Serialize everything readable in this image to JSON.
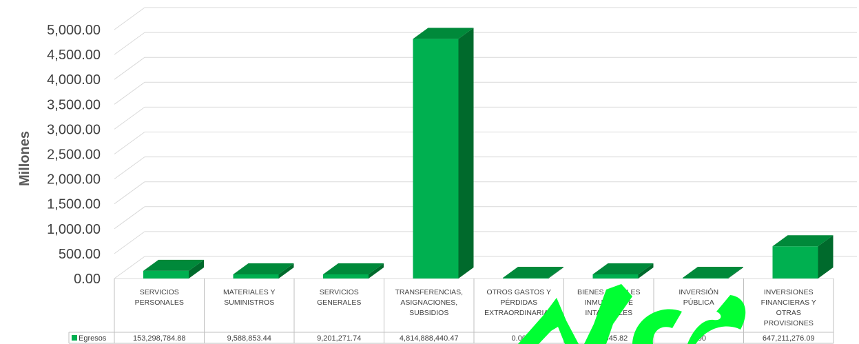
{
  "chart_data": {
    "type": "bar",
    "ylabel": "Millones",
    "ylim": [
      0,
      5000
    ],
    "yticks": [
      "0.00",
      "500.00",
      "1,000.00",
      "1,500.00",
      "2,000.00",
      "2,500.00",
      "3,000.00",
      "3,500.00",
      "4,000.00",
      "4,500.00",
      "5,000.00"
    ],
    "grid": true,
    "three_d": true,
    "categories": [
      [
        "SERVICIOS",
        "PERSONALES"
      ],
      [
        "MATERIALES Y",
        "SUMINISTROS"
      ],
      [
        "SERVICIOS",
        "GENERALES"
      ],
      [
        "TRANSFERENCIAS,",
        "ASIGNACIONES,",
        "SUBSIDIOS"
      ],
      [
        "OTROS GASTOS Y",
        "PÉRDIDAS",
        "EXTRAORDINARIAS"
      ],
      [
        "BIENES MUEBLES",
        "INMUEBLES E",
        "INTANGIBLES"
      ],
      [
        "INVERSIÓN",
        "PÚBLICA"
      ],
      [
        "INVERSIONES",
        "FINANCIERAS Y",
        "OTRAS",
        "PROVISIONES"
      ]
    ],
    "series": [
      {
        "name": "Egresos",
        "values_millions": [
          153.29878488,
          9.58885344,
          9.20127174,
          4814.88844047,
          0,
          0.39064582,
          0,
          647.21127609
        ],
        "table_labels": [
          "153,298,784.88",
          "9,588,853.44",
          "9,201,271.74",
          "4,814,888,440.47",
          "0.00",
          "390,645.82",
          "0.00",
          "647,211,276.09"
        ]
      }
    ],
    "colors": {
      "front": "#00b050",
      "top": "#00893a",
      "side": "#006a2c",
      "grid": "#d9d9d9",
      "watermark": "#00ff33"
    }
  }
}
